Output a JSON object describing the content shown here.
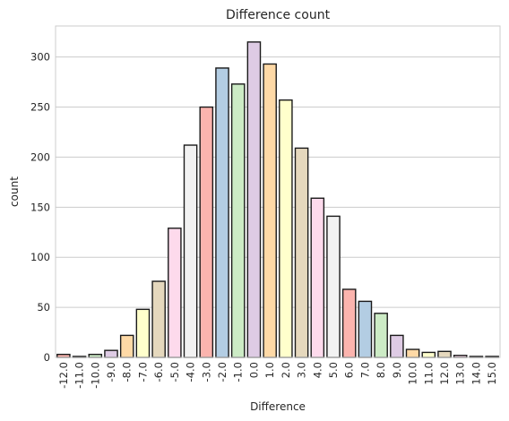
{
  "chart_data": {
    "type": "bar",
    "title": "Difference count",
    "xlabel": "Difference",
    "ylabel": "count",
    "ylim": [
      0,
      331
    ],
    "yticks": [
      0,
      50,
      100,
      150,
      200,
      250,
      300
    ],
    "grid": "horizontal",
    "categories": [
      "-12.0",
      "-11.0",
      "-10.0",
      "-9.0",
      "-8.0",
      "-7.0",
      "-6.0",
      "-5.0",
      "-4.0",
      "-3.0",
      "-2.0",
      "-1.0",
      "0.0",
      "1.0",
      "2.0",
      "3.0",
      "4.0",
      "5.0",
      "6.0",
      "7.0",
      "8.0",
      "9.0",
      "10.0",
      "11.0",
      "12.0",
      "13.0",
      "14.0",
      "15.0"
    ],
    "values": [
      3,
      1,
      3,
      7,
      22,
      48,
      76,
      129,
      212,
      250,
      289,
      273,
      315,
      293,
      257,
      209,
      159,
      141,
      68,
      56,
      44,
      22,
      8,
      5,
      6,
      2,
      1,
      1
    ],
    "colors": [
      "#fbb4ae",
      "#b3cde3",
      "#ccebc5",
      "#decbe4",
      "#fed9a6",
      "#ffffcc",
      "#e5d8bd",
      "#fddaec",
      "#f2f2f2"
    ]
  }
}
